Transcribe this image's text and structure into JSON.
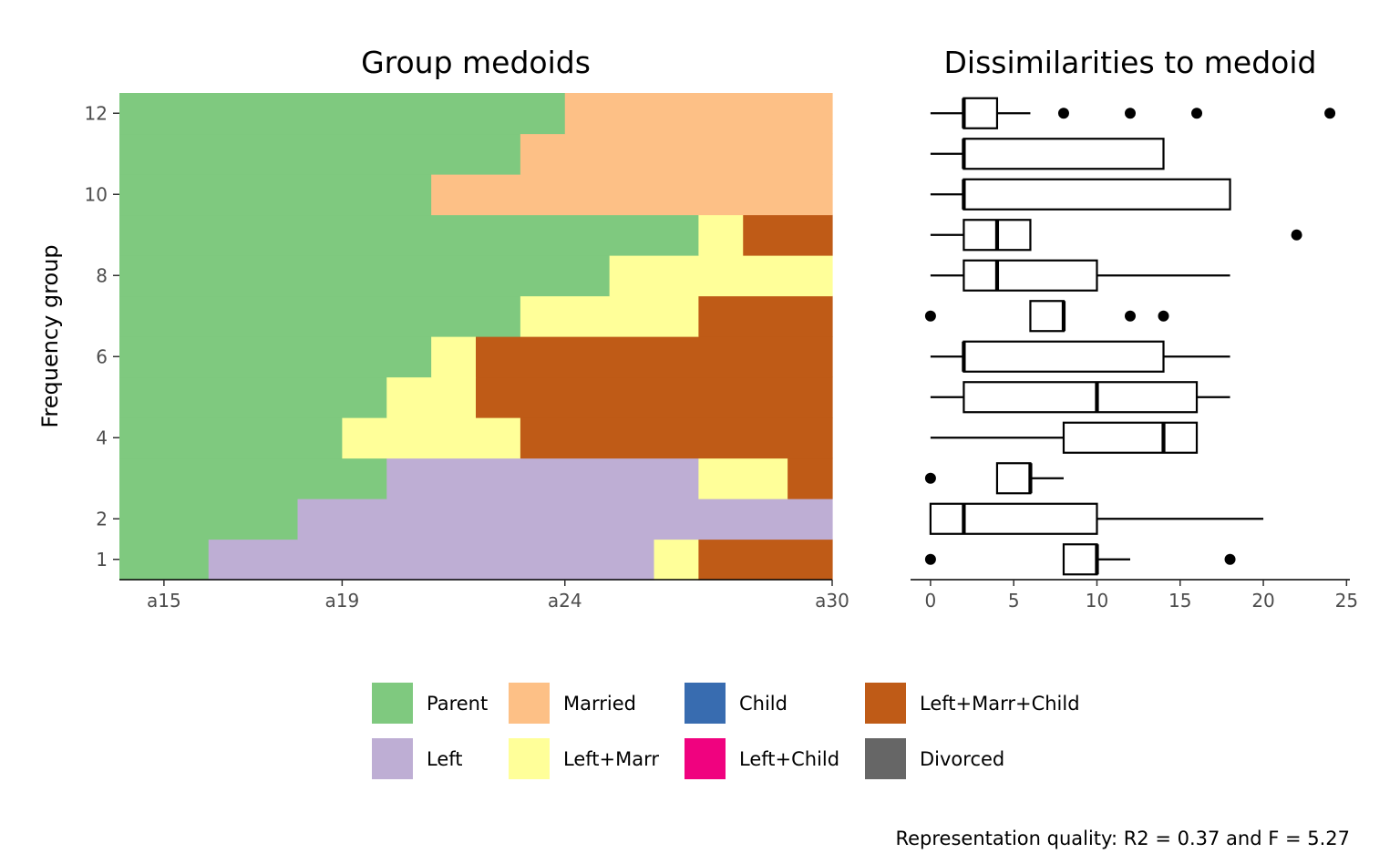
{
  "chart_data": [
    {
      "type": "heatmap",
      "title": "Group medoids",
      "xlabel": "",
      "ylabel": "Frequency group",
      "x_tick_labels": [
        "a15",
        "a19",
        "a24",
        "a30"
      ],
      "y_tick_labels": [
        "1",
        "2",
        "4",
        "6",
        "8",
        "10",
        "12"
      ],
      "x_positions": [
        "a14",
        "a15",
        "a16",
        "a17",
        "a18",
        "a19",
        "a20",
        "a21",
        "a22",
        "a23",
        "a24",
        "a25",
        "a26",
        "a27",
        "a28",
        "a29",
        "a30"
      ],
      "groups": [
        1,
        2,
        3,
        4,
        5,
        6,
        7,
        8,
        9,
        10,
        11,
        12
      ],
      "states": [
        "Parent",
        "Left",
        "Married",
        "Left+Marr",
        "Child",
        "Left+Child",
        "Left+Marr+Child",
        "Divorced"
      ],
      "sequences": [
        {
          "group": 1,
          "runs": [
            {
              "state": "Parent",
              "length": 2
            },
            {
              "state": "Left",
              "length": 10
            },
            {
              "state": "Left+Marr",
              "length": 1
            },
            {
              "state": "Left+Marr+Child",
              "length": 3
            }
          ]
        },
        {
          "group": 2,
          "runs": [
            {
              "state": "Parent",
              "length": 4
            },
            {
              "state": "Left",
              "length": 12
            }
          ]
        },
        {
          "group": 3,
          "runs": [
            {
              "state": "Parent",
              "length": 6
            },
            {
              "state": "Left",
              "length": 7
            },
            {
              "state": "Left+Marr",
              "length": 2
            },
            {
              "state": "Left+Marr+Child",
              "length": 1
            }
          ]
        },
        {
          "group": 4,
          "runs": [
            {
              "state": "Parent",
              "length": 5
            },
            {
              "state": "Left+Marr",
              "length": 4
            },
            {
              "state": "Left+Marr+Child",
              "length": 7
            }
          ]
        },
        {
          "group": 5,
          "runs": [
            {
              "state": "Parent",
              "length": 6
            },
            {
              "state": "Left+Marr",
              "length": 2
            },
            {
              "state": "Left+Marr+Child",
              "length": 8
            }
          ]
        },
        {
          "group": 6,
          "runs": [
            {
              "state": "Parent",
              "length": 7
            },
            {
              "state": "Left+Marr",
              "length": 1
            },
            {
              "state": "Left+Marr+Child",
              "length": 8
            }
          ]
        },
        {
          "group": 7,
          "runs": [
            {
              "state": "Parent",
              "length": 9
            },
            {
              "state": "Left+Marr",
              "length": 4
            },
            {
              "state": "Left+Marr+Child",
              "length": 3
            }
          ]
        },
        {
          "group": 8,
          "runs": [
            {
              "state": "Parent",
              "length": 11
            },
            {
              "state": "Left+Marr",
              "length": 5
            }
          ]
        },
        {
          "group": 9,
          "runs": [
            {
              "state": "Parent",
              "length": 13
            },
            {
              "state": "Left+Marr",
              "length": 1
            },
            {
              "state": "Left+Marr+Child",
              "length": 2
            }
          ]
        },
        {
          "group": 10,
          "runs": [
            {
              "state": "Parent",
              "length": 7
            },
            {
              "state": "Married",
              "length": 9
            }
          ]
        },
        {
          "group": 11,
          "runs": [
            {
              "state": "Parent",
              "length": 9
            },
            {
              "state": "Married",
              "length": 7
            }
          ]
        },
        {
          "group": 12,
          "runs": [
            {
              "state": "Parent",
              "length": 10
            },
            {
              "state": "Married",
              "length": 6
            }
          ]
        }
      ]
    },
    {
      "type": "box",
      "title": "Dissimilarities to medoid",
      "xlabel": "",
      "ylabel": "",
      "xlim": [
        -1.2,
        25.2
      ],
      "x_ticks": [
        0,
        5,
        10,
        15,
        20,
        25
      ],
      "boxes": [
        {
          "group": 1,
          "whisker_low": 8,
          "q1": 8,
          "median": 10,
          "q3": 10,
          "whisker_high": 12,
          "outliers": [
            0,
            18
          ]
        },
        {
          "group": 2,
          "whisker_low": 0,
          "q1": 0,
          "median": 2,
          "q3": 10,
          "whisker_high": 20,
          "outliers": []
        },
        {
          "group": 3,
          "whisker_low": 4,
          "q1": 4,
          "median": 6,
          "q3": 6,
          "whisker_high": 8,
          "outliers": [
            0
          ]
        },
        {
          "group": 4,
          "whisker_low": 0,
          "q1": 8,
          "median": 14,
          "q3": 16,
          "whisker_high": 16,
          "outliers": []
        },
        {
          "group": 5,
          "whisker_low": 0,
          "q1": 2,
          "median": 10,
          "q3": 16,
          "whisker_high": 18,
          "outliers": []
        },
        {
          "group": 6,
          "whisker_low": 0,
          "q1": 2,
          "median": 2,
          "q3": 14,
          "whisker_high": 18,
          "outliers": []
        },
        {
          "group": 7,
          "whisker_low": 6,
          "q1": 6,
          "median": 8,
          "q3": 8,
          "whisker_high": 8,
          "outliers": [
            0,
            12,
            14
          ]
        },
        {
          "group": 8,
          "whisker_low": 0,
          "q1": 2,
          "median": 4,
          "q3": 10,
          "whisker_high": 18,
          "outliers": []
        },
        {
          "group": 9,
          "whisker_low": 0,
          "q1": 2,
          "median": 4,
          "q3": 6,
          "whisker_high": 6,
          "outliers": [
            22
          ]
        },
        {
          "group": 10,
          "whisker_low": 0,
          "q1": 2,
          "median": 2,
          "q3": 18,
          "whisker_high": 18,
          "outliers": []
        },
        {
          "group": 11,
          "whisker_low": 0,
          "q1": 2,
          "median": 2,
          "q3": 14,
          "whisker_high": 14,
          "outliers": []
        },
        {
          "group": 12,
          "whisker_low": 0,
          "q1": 2,
          "median": 2,
          "q3": 4,
          "whisker_high": 6,
          "outliers": [
            8,
            12,
            16,
            24
          ]
        }
      ]
    }
  ],
  "legend": {
    "position": "bottom",
    "items": [
      {
        "label": "Parent",
        "color": "#7FC97F"
      },
      {
        "label": "Left",
        "color": "#BEAED4"
      },
      {
        "label": "Married",
        "color": "#FDC086"
      },
      {
        "label": "Left+Marr",
        "color": "#FFFF99"
      },
      {
        "label": "Child",
        "color": "#386CB0"
      },
      {
        "label": "Left+Child",
        "color": "#F0027F"
      },
      {
        "label": "Left+Marr+Child",
        "color": "#BF5B17"
      },
      {
        "label": "Divorced",
        "color": "#666666"
      }
    ]
  },
  "caption": "Representation quality: R2 = 0.37 and F = 5.27"
}
